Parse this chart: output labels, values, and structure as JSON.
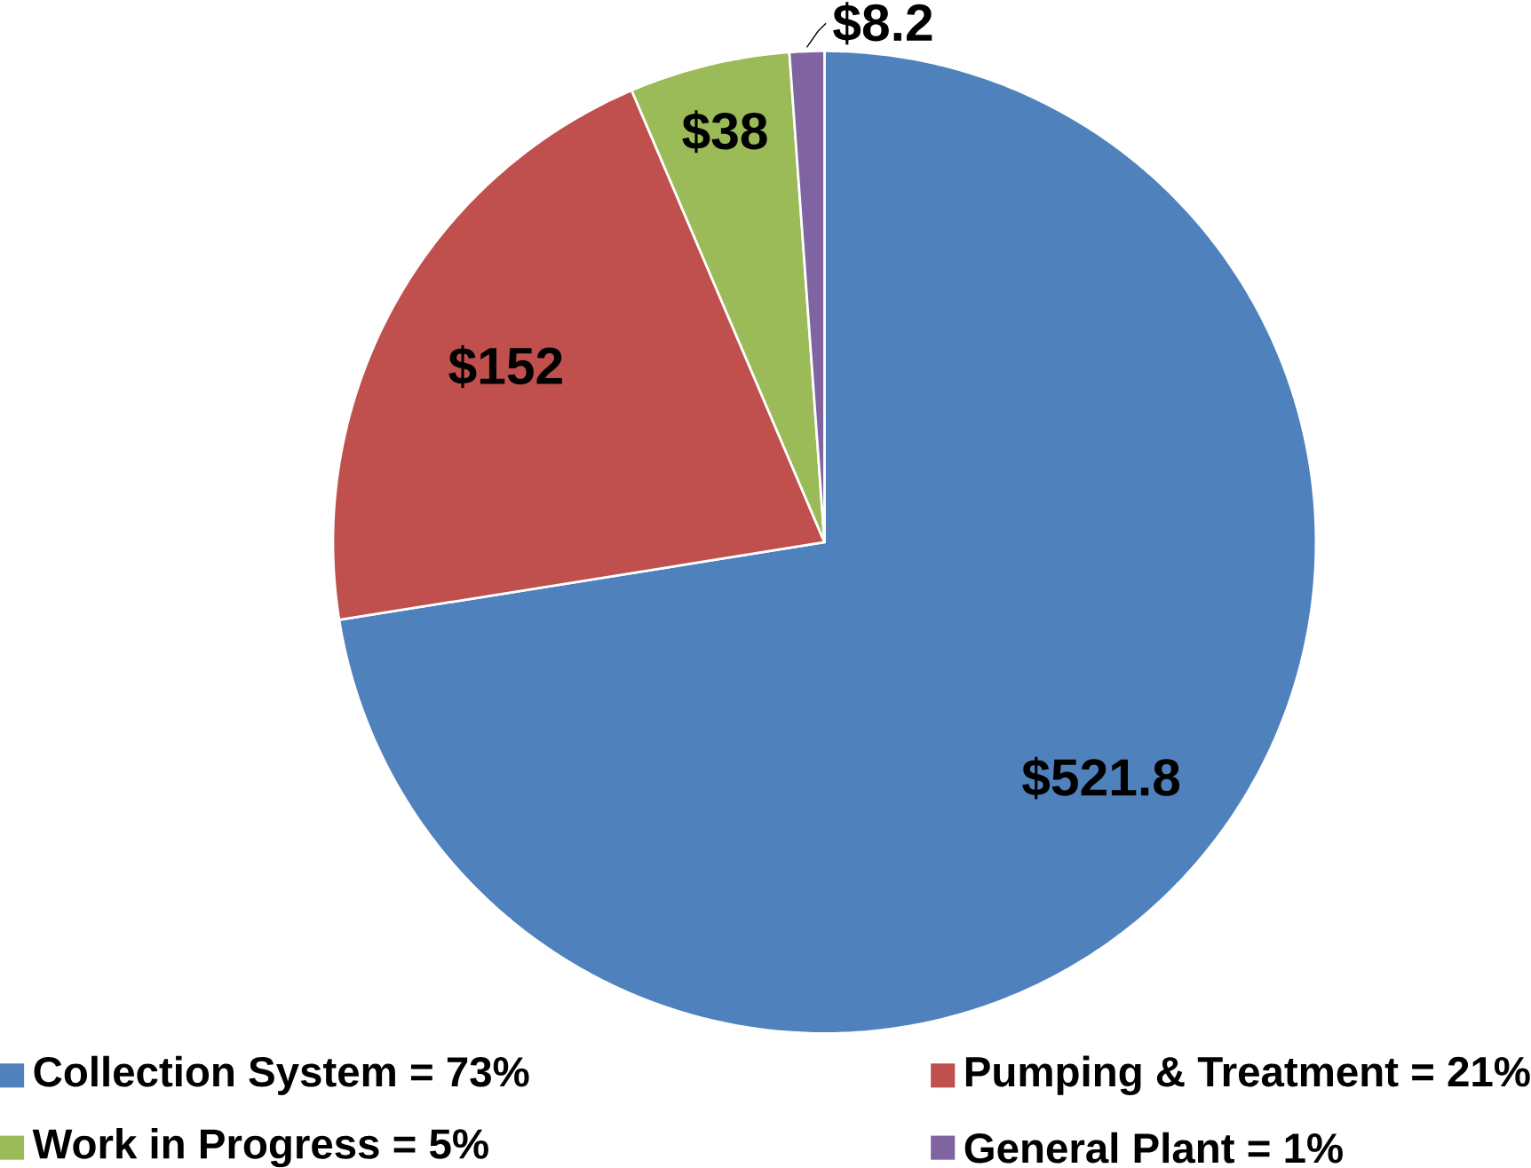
{
  "chart_data": {
    "type": "pie",
    "categories": [
      "Collection System = 73%",
      "Pumping & Treatment = 21%",
      "Work in Progress = 5%",
      "General Plant = 1%"
    ],
    "values": [
      521.8,
      152,
      38,
      8.2
    ],
    "colors": [
      "#4f81bd",
      "#c0504d",
      "#9bbb59",
      "#8064a2"
    ],
    "value_labels": [
      "$521.8",
      "$152",
      "$38",
      "$8.2"
    ],
    "legend": "bottom"
  }
}
